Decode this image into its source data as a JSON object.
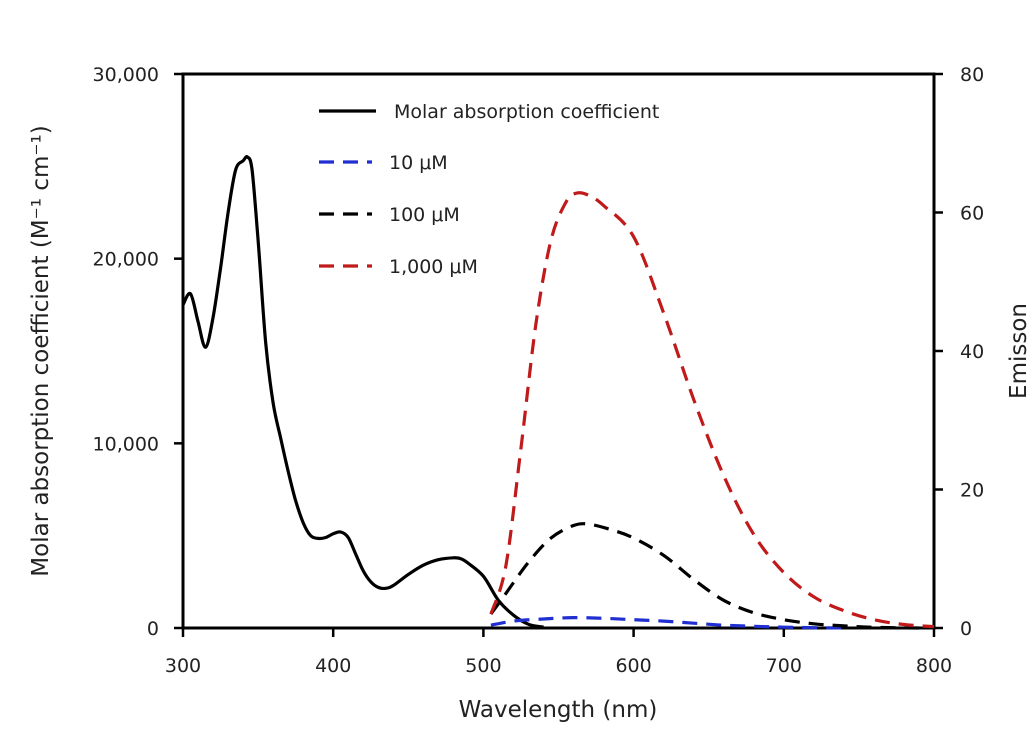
{
  "chart_data": {
    "type": "line",
    "xlabel": "Wavelength (nm)",
    "ylabel": "Molar absorption coefficient (M⁻¹ cm⁻¹)",
    "y2label": "Emisson",
    "xlim": [
      300,
      800
    ],
    "ylim": [
      0,
      30000
    ],
    "y2lim": [
      0,
      80
    ],
    "xticks": [
      300,
      400,
      500,
      600,
      700,
      800
    ],
    "xtick_labels": [
      "300",
      "400",
      "500",
      "600",
      "700",
      "800"
    ],
    "yticks": [
      0,
      10000,
      20000,
      30000
    ],
    "ytick_labels": [
      "0",
      "10,000",
      "20,000",
      "30,000"
    ],
    "y2ticks": [
      0,
      20,
      40,
      60,
      80
    ],
    "y2tick_labels": [
      "0",
      "20",
      "40",
      "60",
      "80"
    ],
    "grid": false,
    "legend_position": "top-center",
    "series": [
      {
        "name": "Molar absorption coefficient",
        "axis": "left",
        "style": "solid",
        "color": "#000000",
        "x": [
          300,
          305,
          310,
          315,
          320,
          325,
          330,
          335,
          340,
          343,
          346,
          350,
          355,
          360,
          365,
          370,
          375,
          380,
          385,
          390,
          395,
          400,
          405,
          410,
          415,
          420,
          425,
          430,
          435,
          440,
          450,
          460,
          470,
          480,
          485,
          490,
          500,
          510,
          520,
          530,
          540
        ],
        "y": [
          17500,
          18100,
          16600,
          15200,
          16800,
          19500,
          22500,
          24800,
          25300,
          25500,
          24800,
          21000,
          15500,
          12200,
          10300,
          8500,
          6900,
          5700,
          5000,
          4850,
          4900,
          5100,
          5200,
          4900,
          4000,
          3100,
          2500,
          2200,
          2150,
          2300,
          2900,
          3400,
          3700,
          3800,
          3750,
          3500,
          2800,
          1500,
          700,
          200,
          50
        ]
      },
      {
        "name": "10 μM",
        "axis": "right",
        "style": "dashed",
        "color": "#1f2fd1",
        "x": [
          505,
          520,
          540,
          560,
          580,
          600,
          620,
          640,
          660,
          680,
          700,
          720,
          740
        ],
        "y": [
          0.4,
          1.0,
          1.3,
          1.5,
          1.4,
          1.2,
          1.0,
          0.7,
          0.4,
          0.25,
          0.12,
          0.05,
          0.0
        ]
      },
      {
        "name": "100 μM",
        "axis": "right",
        "style": "dashed",
        "color": "#000000",
        "x": [
          505,
          515,
          530,
          545,
          560,
          570,
          585,
          600,
          620,
          640,
          660,
          680,
          700,
          720,
          740,
          760,
          790
        ],
        "y": [
          2.0,
          5.0,
          9.5,
          13.0,
          14.8,
          15.0,
          14.2,
          13.0,
          10.5,
          7.0,
          4.0,
          2.2,
          1.2,
          0.6,
          0.3,
          0.1,
          0.0
        ]
      },
      {
        "name": "1,000 μM",
        "axis": "right",
        "style": "dashed",
        "color": "#c01a1a",
        "x": [
          505,
          515,
          525,
          535,
          545,
          555,
          562,
          570,
          580,
          600,
          620,
          640,
          660,
          680,
          700,
          720,
          740,
          760,
          780,
          800
        ],
        "y": [
          2.0,
          9.0,
          26.0,
          44.0,
          56.0,
          61.5,
          62.8,
          62.5,
          61.0,
          56.5,
          45.5,
          33.0,
          22.0,
          13.5,
          8.0,
          4.5,
          2.5,
          1.2,
          0.5,
          0.2
        ]
      }
    ]
  },
  "colors": {
    "axis": "#000000",
    "text": "#222222"
  }
}
